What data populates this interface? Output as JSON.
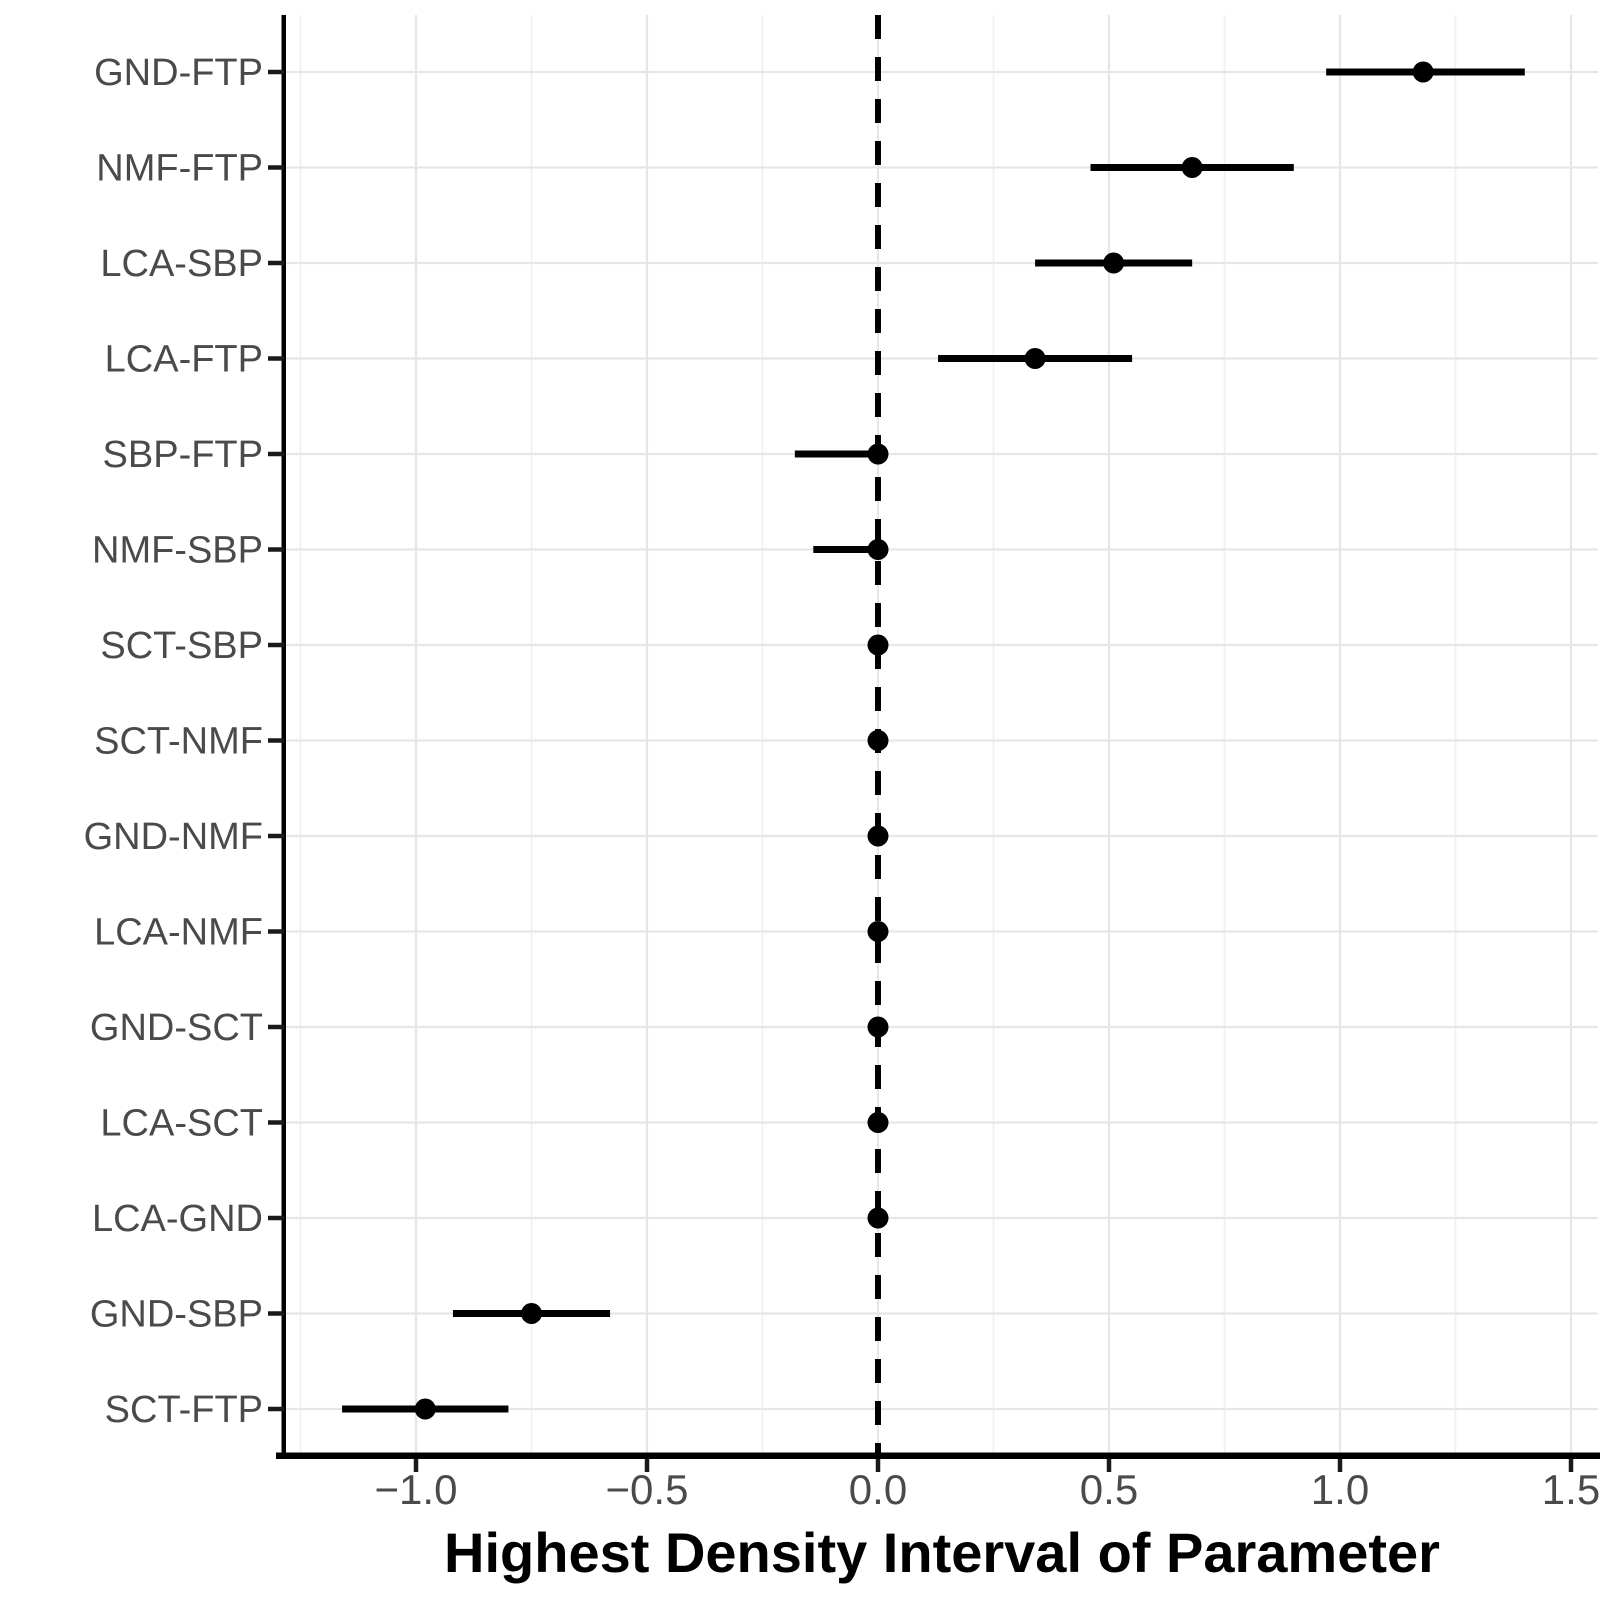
{
  "chart_data": {
    "type": "scatter",
    "subtype": "forest-interval-plot",
    "title": "",
    "xlabel": "Highest Density Interval of Parameter",
    "ylabel": "",
    "categories": [
      "GND-FTP",
      "NMF-FTP",
      "LCA-SBP",
      "LCA-FTP",
      "SBP-FTP",
      "NMF-SBP",
      "SCT-SBP",
      "SCT-NMF",
      "GND-NMF",
      "LCA-NMF",
      "GND-SCT",
      "LCA-SCT",
      "LCA-GND",
      "GND-SBP",
      "SCT-FTP"
    ],
    "rows": [
      {
        "label": "GND-FTP",
        "point": 1.18,
        "lower": 0.97,
        "upper": 1.4
      },
      {
        "label": "NMF-FTP",
        "point": 0.68,
        "lower": 0.46,
        "upper": 0.9
      },
      {
        "label": "LCA-SBP",
        "point": 0.51,
        "lower": 0.34,
        "upper": 0.68
      },
      {
        "label": "LCA-FTP",
        "point": 0.34,
        "lower": 0.13,
        "upper": 0.55
      },
      {
        "label": "SBP-FTP",
        "point": 0.0,
        "lower": -0.18,
        "upper": 0.01
      },
      {
        "label": "NMF-SBP",
        "point": 0.0,
        "lower": -0.14,
        "upper": 0.01
      },
      {
        "label": "SCT-SBP",
        "point": 0.0,
        "lower": -0.02,
        "upper": 0.02
      },
      {
        "label": "SCT-NMF",
        "point": 0.0,
        "lower": -0.02,
        "upper": 0.02
      },
      {
        "label": "GND-NMF",
        "point": 0.0,
        "lower": -0.02,
        "upper": 0.02
      },
      {
        "label": "LCA-NMF",
        "point": 0.0,
        "lower": -0.02,
        "upper": 0.02
      },
      {
        "label": "GND-SCT",
        "point": 0.0,
        "lower": -0.02,
        "upper": 0.02
      },
      {
        "label": "LCA-SCT",
        "point": 0.0,
        "lower": -0.02,
        "upper": 0.02
      },
      {
        "label": "LCA-GND",
        "point": 0.0,
        "lower": -0.02,
        "upper": 0.02
      },
      {
        "label": "GND-SBP",
        "point": -0.75,
        "lower": -0.92,
        "upper": -0.58
      },
      {
        "label": "SCT-FTP",
        "point": -0.98,
        "lower": -1.16,
        "upper": -0.8
      }
    ],
    "x_ticks": [
      -1.0,
      -0.5,
      0.0,
      0.5,
      1.0,
      1.5
    ],
    "x_tick_labels": [
      "−1.0",
      "−0.5",
      "0.0",
      "0.5",
      "1.0",
      "1.5"
    ],
    "xlim": [
      -1.29,
      1.56
    ],
    "reference_line_x": 0.0,
    "reference_line_style": "dashed",
    "grid": true,
    "legend": "none",
    "colors": {
      "point": "#000000",
      "interval": "#000000",
      "axis_line": "#000000",
      "axis_text": "#4a4a4a",
      "grid_major": "#e6e6e6",
      "grid_minor": "#f0f0f0",
      "background": "#ffffff"
    }
  }
}
